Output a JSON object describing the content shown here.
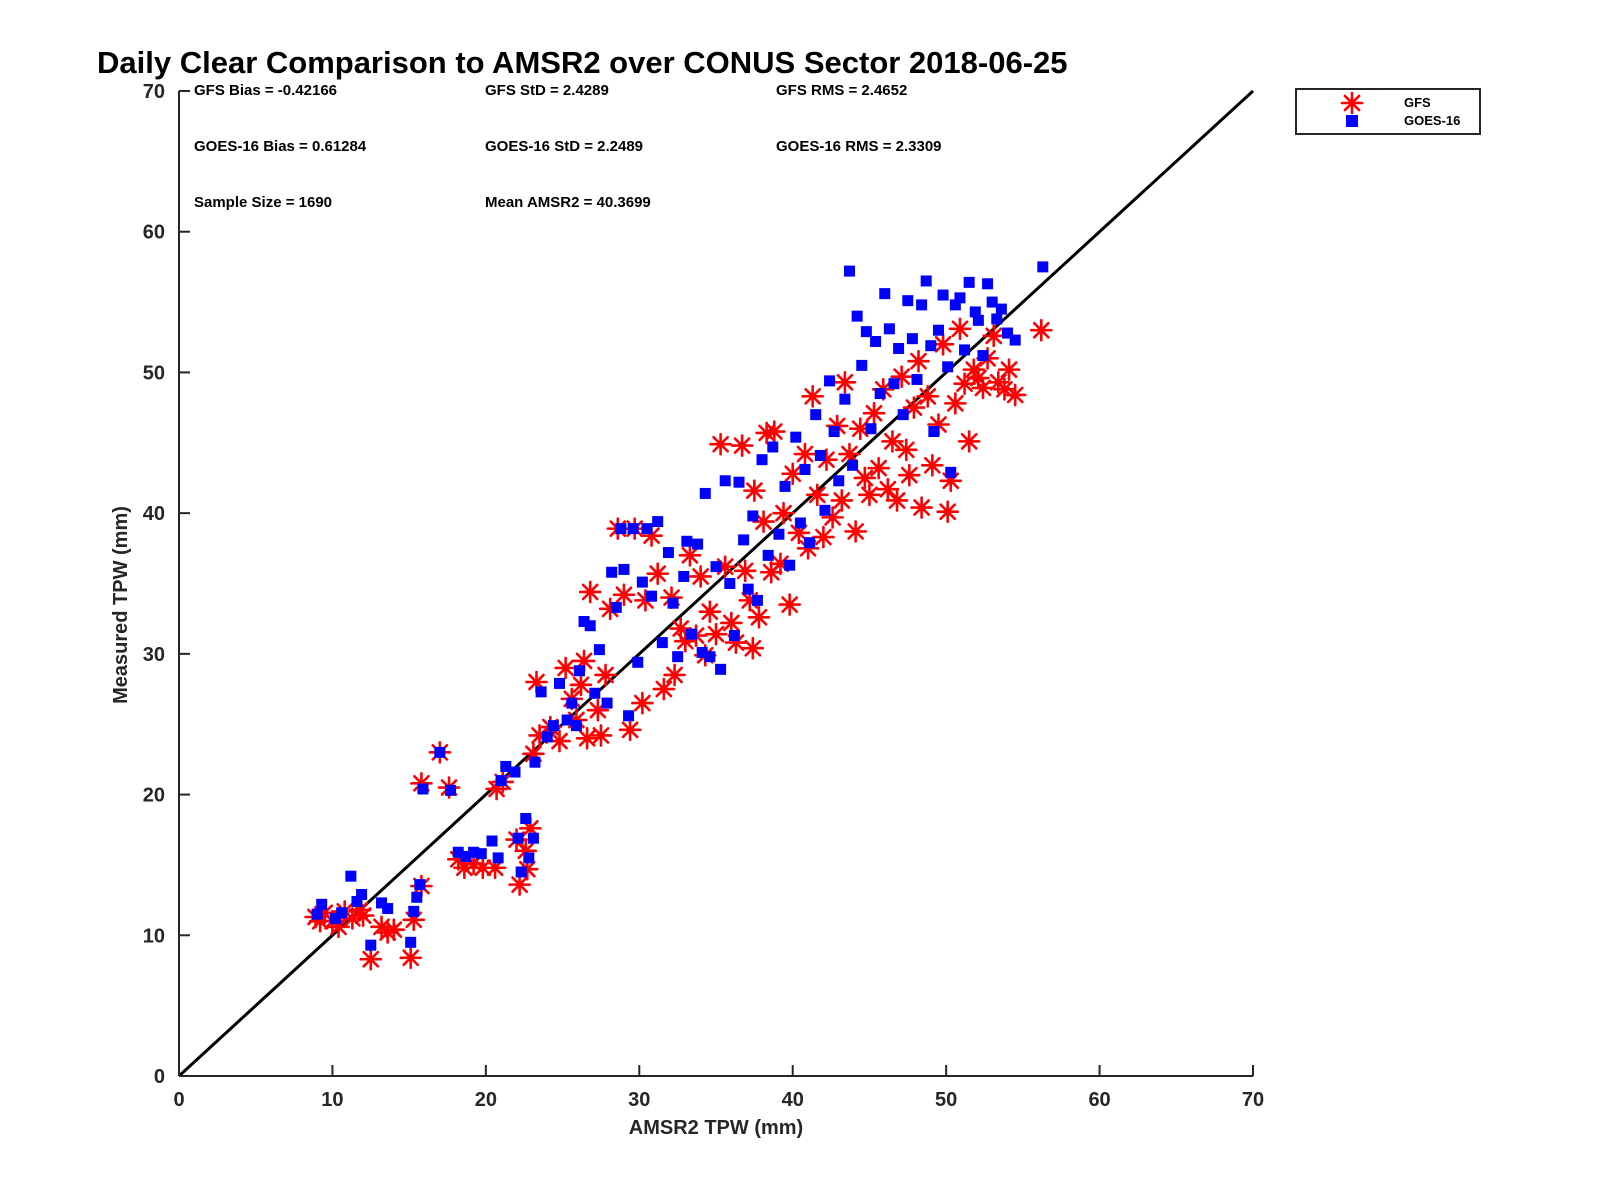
{
  "chart_data": {
    "type": "scatter",
    "title": "Daily Clear Comparison to AMSR2 over CONUS Sector 2018-06-25",
    "xlabel": "AMSR2 TPW (mm)",
    "ylabel": "Measured TPW (mm)",
    "xlim": [
      0,
      70
    ],
    "ylim": [
      0,
      70
    ],
    "xticks": [
      "0",
      "10",
      "20",
      "30",
      "40",
      "50",
      "60",
      "70"
    ],
    "yticks": [
      "0",
      "10",
      "20",
      "30",
      "40",
      "50",
      "60",
      "70"
    ],
    "grid": false,
    "legend_position": "outside-top-right",
    "reference_line": {
      "x": [
        0,
        70
      ],
      "y": [
        0,
        70
      ],
      "color": "#000000"
    },
    "stats": [
      {
        "text": "GFS Bias = -0.42166"
      },
      {
        "text": "GFS StD = 2.4289"
      },
      {
        "text": "GFS RMS = 2.4652"
      },
      {
        "text": "GOES-16 Bias = 0.61284"
      },
      {
        "text": "GOES-16 StD = 2.2489"
      },
      {
        "text": "GOES-16 RMS = 2.3309"
      },
      {
        "text": "Sample Size = 1690"
      },
      {
        "text": "Mean AMSR2 = 40.3699"
      }
    ],
    "series": [
      {
        "name": "GFS",
        "marker": "asterisk",
        "color": "#ff0000",
        "points": [
          [
            8.9,
            11.3
          ],
          [
            9.2,
            11.0
          ],
          [
            9.5,
            11.6
          ],
          [
            10.0,
            11.0
          ],
          [
            10.4,
            10.6
          ],
          [
            10.8,
            11.7
          ],
          [
            11.3,
            11.2
          ],
          [
            11.8,
            11.8
          ],
          [
            12.0,
            11.4
          ],
          [
            12.5,
            8.3
          ],
          [
            13.2,
            10.6
          ],
          [
            13.6,
            10.2
          ],
          [
            14.0,
            10.4
          ],
          [
            15.1,
            8.4
          ],
          [
            15.3,
            11.1
          ],
          [
            15.8,
            13.5
          ],
          [
            15.8,
            20.8
          ],
          [
            17.0,
            23.0
          ],
          [
            17.6,
            20.5
          ],
          [
            18.2,
            15.4
          ],
          [
            18.6,
            14.8
          ],
          [
            19.2,
            15.1
          ],
          [
            19.8,
            14.8
          ],
          [
            20.6,
            14.8
          ],
          [
            20.7,
            20.4
          ],
          [
            21.1,
            20.9
          ],
          [
            22.0,
            16.8
          ],
          [
            22.2,
            13.6
          ],
          [
            22.6,
            16.0
          ],
          [
            22.7,
            14.7
          ],
          [
            22.9,
            17.6
          ],
          [
            23.1,
            22.9
          ],
          [
            23.3,
            28.0
          ],
          [
            23.5,
            24.2
          ],
          [
            24.2,
            24.8
          ],
          [
            24.8,
            23.8
          ],
          [
            25.2,
            29.0
          ],
          [
            25.6,
            26.8
          ],
          [
            25.9,
            25.3
          ],
          [
            26.2,
            27.8
          ],
          [
            26.4,
            29.5
          ],
          [
            26.6,
            24.0
          ],
          [
            26.8,
            34.4
          ],
          [
            27.3,
            26.0
          ],
          [
            27.5,
            24.2
          ],
          [
            27.8,
            28.5
          ],
          [
            28.1,
            33.2
          ],
          [
            28.6,
            38.9
          ],
          [
            29.0,
            34.2
          ],
          [
            29.4,
            24.6
          ],
          [
            29.7,
            38.9
          ],
          [
            30.2,
            26.5
          ],
          [
            30.4,
            33.8
          ],
          [
            30.8,
            38.4
          ],
          [
            31.2,
            35.7
          ],
          [
            31.6,
            27.5
          ],
          [
            32.1,
            34.0
          ],
          [
            32.3,
            28.5
          ],
          [
            32.7,
            31.8
          ],
          [
            33.0,
            30.9
          ],
          [
            33.3,
            37.0
          ],
          [
            33.7,
            31.3
          ],
          [
            34.0,
            35.5
          ],
          [
            34.3,
            29.9
          ],
          [
            34.6,
            33.0
          ],
          [
            35.0,
            31.4
          ],
          [
            35.3,
            44.9
          ],
          [
            35.6,
            36.2
          ],
          [
            36.0,
            32.2
          ],
          [
            36.3,
            30.8
          ],
          [
            36.7,
            44.8
          ],
          [
            36.9,
            35.9
          ],
          [
            37.2,
            33.8
          ],
          [
            37.4,
            30.4
          ],
          [
            37.5,
            41.6
          ],
          [
            37.8,
            32.6
          ],
          [
            38.1,
            39.4
          ],
          [
            38.3,
            45.7
          ],
          [
            38.6,
            35.8
          ],
          [
            38.8,
            45.8
          ],
          [
            39.2,
            36.4
          ],
          [
            39.4,
            40.0
          ],
          [
            39.8,
            33.5
          ],
          [
            40.0,
            42.8
          ],
          [
            40.4,
            38.6
          ],
          [
            40.8,
            44.2
          ],
          [
            41.0,
            37.5
          ],
          [
            41.3,
            48.3
          ],
          [
            41.6,
            41.3
          ],
          [
            42.0,
            38.3
          ],
          [
            42.2,
            43.8
          ],
          [
            42.6,
            39.7
          ],
          [
            42.9,
            46.2
          ],
          [
            43.2,
            40.9
          ],
          [
            43.4,
            49.3
          ],
          [
            43.7,
            44.2
          ],
          [
            44.1,
            38.7
          ],
          [
            44.4,
            46.0
          ],
          [
            44.7,
            42.5
          ],
          [
            45.0,
            41.3
          ],
          [
            45.3,
            47.1
          ],
          [
            45.6,
            43.2
          ],
          [
            45.9,
            48.8
          ],
          [
            46.2,
            41.7
          ],
          [
            46.5,
            45.1
          ],
          [
            46.8,
            40.9
          ],
          [
            47.1,
            49.7
          ],
          [
            47.4,
            44.5
          ],
          [
            47.6,
            42.7
          ],
          [
            47.9,
            47.5
          ],
          [
            48.2,
            50.8
          ],
          [
            48.4,
            40.4
          ],
          [
            48.8,
            48.3
          ],
          [
            49.1,
            43.4
          ],
          [
            49.5,
            46.3
          ],
          [
            49.8,
            52.0
          ],
          [
            50.1,
            40.1
          ],
          [
            50.3,
            42.3
          ],
          [
            50.6,
            47.8
          ],
          [
            50.9,
            53.1
          ],
          [
            51.2,
            49.2
          ],
          [
            51.5,
            45.1
          ],
          [
            51.8,
            50.2
          ],
          [
            52.1,
            49.6
          ],
          [
            52.4,
            48.9
          ],
          [
            52.7,
            51.0
          ],
          [
            53.1,
            52.6
          ],
          [
            53.4,
            49.3
          ],
          [
            53.8,
            48.8
          ],
          [
            54.1,
            50.2
          ],
          [
            54.5,
            48.4
          ],
          [
            56.2,
            53.0
          ]
        ]
      },
      {
        "name": "GOES-16",
        "marker": "square",
        "color": "#0000ff",
        "points": [
          [
            9.0,
            11.5
          ],
          [
            9.3,
            12.2
          ],
          [
            10.2,
            11.2
          ],
          [
            10.6,
            11.6
          ],
          [
            11.2,
            14.2
          ],
          [
            11.6,
            12.4
          ],
          [
            11.9,
            12.9
          ],
          [
            12.5,
            9.3
          ],
          [
            13.2,
            12.3
          ],
          [
            13.6,
            11.9
          ],
          [
            15.1,
            9.5
          ],
          [
            15.3,
            11.7
          ],
          [
            15.5,
            12.7
          ],
          [
            15.7,
            13.6
          ],
          [
            15.9,
            20.4
          ],
          [
            17.0,
            23.0
          ],
          [
            17.7,
            20.3
          ],
          [
            18.2,
            15.9
          ],
          [
            18.7,
            15.6
          ],
          [
            19.2,
            15.9
          ],
          [
            19.7,
            15.8
          ],
          [
            20.4,
            16.7
          ],
          [
            20.8,
            15.5
          ],
          [
            21.0,
            21.0
          ],
          [
            21.3,
            22.0
          ],
          [
            21.9,
            21.6
          ],
          [
            22.1,
            16.9
          ],
          [
            22.3,
            14.5
          ],
          [
            22.6,
            18.3
          ],
          [
            22.8,
            15.5
          ],
          [
            23.1,
            16.9
          ],
          [
            23.2,
            22.3
          ],
          [
            23.6,
            27.3
          ],
          [
            24.0,
            24.1
          ],
          [
            24.4,
            24.9
          ],
          [
            24.8,
            27.9
          ],
          [
            25.3,
            25.3
          ],
          [
            25.6,
            26.5
          ],
          [
            25.9,
            24.9
          ],
          [
            26.1,
            28.8
          ],
          [
            26.4,
            32.3
          ],
          [
            26.8,
            32.0
          ],
          [
            27.1,
            27.2
          ],
          [
            27.4,
            30.3
          ],
          [
            27.9,
            26.5
          ],
          [
            28.2,
            35.8
          ],
          [
            28.5,
            33.3
          ],
          [
            28.8,
            38.9
          ],
          [
            29.0,
            36.0
          ],
          [
            29.3,
            25.6
          ],
          [
            29.6,
            38.9
          ],
          [
            29.9,
            29.4
          ],
          [
            30.2,
            35.1
          ],
          [
            30.5,
            38.9
          ],
          [
            30.8,
            34.1
          ],
          [
            31.2,
            39.4
          ],
          [
            31.5,
            30.8
          ],
          [
            31.9,
            37.2
          ],
          [
            32.2,
            33.6
          ],
          [
            32.5,
            29.8
          ],
          [
            32.9,
            35.5
          ],
          [
            33.1,
            38.0
          ],
          [
            33.4,
            31.4
          ],
          [
            33.8,
            37.8
          ],
          [
            34.1,
            30.1
          ],
          [
            34.3,
            41.4
          ],
          [
            34.6,
            29.8
          ],
          [
            35.0,
            36.2
          ],
          [
            35.3,
            28.9
          ],
          [
            35.6,
            42.3
          ],
          [
            35.9,
            35.0
          ],
          [
            36.2,
            31.3
          ],
          [
            36.5,
            42.2
          ],
          [
            36.8,
            38.1
          ],
          [
            37.1,
            34.6
          ],
          [
            37.4,
            39.8
          ],
          [
            37.7,
            33.8
          ],
          [
            38.0,
            43.8
          ],
          [
            38.4,
            37.0
          ],
          [
            38.7,
            44.7
          ],
          [
            39.1,
            38.5
          ],
          [
            39.5,
            41.9
          ],
          [
            39.8,
            36.3
          ],
          [
            40.2,
            45.4
          ],
          [
            40.5,
            39.3
          ],
          [
            40.8,
            43.1
          ],
          [
            41.1,
            37.9
          ],
          [
            41.5,
            47.0
          ],
          [
            41.8,
            44.1
          ],
          [
            42.1,
            40.2
          ],
          [
            42.4,
            49.4
          ],
          [
            42.7,
            45.8
          ],
          [
            43.0,
            42.3
          ],
          [
            43.4,
            48.1
          ],
          [
            43.7,
            57.2
          ],
          [
            43.9,
            43.4
          ],
          [
            44.2,
            54.0
          ],
          [
            44.5,
            50.5
          ],
          [
            44.8,
            52.9
          ],
          [
            45.1,
            46.0
          ],
          [
            45.4,
            52.2
          ],
          [
            45.7,
            48.5
          ],
          [
            46.0,
            55.6
          ],
          [
            46.3,
            53.1
          ],
          [
            46.6,
            49.2
          ],
          [
            46.9,
            51.7
          ],
          [
            47.2,
            47.0
          ],
          [
            47.5,
            55.1
          ],
          [
            47.8,
            52.4
          ],
          [
            48.1,
            49.5
          ],
          [
            48.4,
            54.8
          ],
          [
            48.7,
            56.5
          ],
          [
            49.0,
            51.9
          ],
          [
            49.2,
            45.8
          ],
          [
            49.5,
            53.0
          ],
          [
            49.8,
            55.5
          ],
          [
            50.1,
            50.4
          ],
          [
            50.3,
            42.9
          ],
          [
            50.6,
            54.8
          ],
          [
            50.9,
            55.3
          ],
          [
            51.2,
            51.6
          ],
          [
            51.5,
            56.4
          ],
          [
            51.9,
            54.3
          ],
          [
            52.1,
            53.7
          ],
          [
            52.4,
            51.2
          ],
          [
            52.7,
            56.3
          ],
          [
            53.0,
            55.0
          ],
          [
            53.3,
            53.8
          ],
          [
            53.6,
            54.5
          ],
          [
            54.0,
            52.8
          ],
          [
            54.5,
            52.3
          ],
          [
            56.3,
            57.5
          ]
        ]
      }
    ]
  }
}
